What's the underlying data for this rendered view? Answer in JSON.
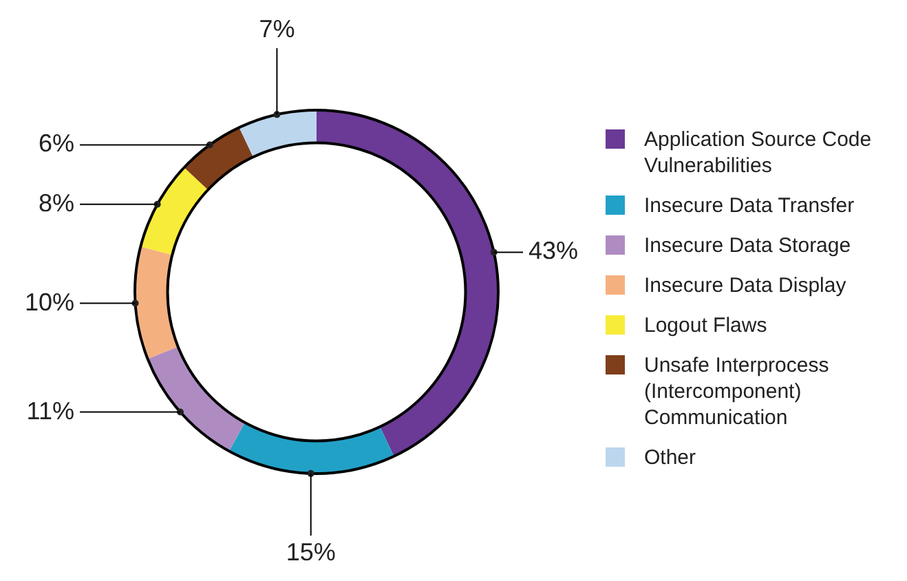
{
  "chart_data": {
    "type": "donut",
    "categories": [
      "Application Source Code Vulnerabilities",
      "Insecure Data Transfer",
      "Insecure Data Storage",
      "Insecure Data Display",
      "Logout Flaws",
      "Unsafe Interprocess (Intercomponent) Communication",
      "Other"
    ],
    "values": [
      43,
      15,
      11,
      10,
      8,
      6,
      7
    ],
    "colors": [
      "#6a3a96",
      "#22a1c7",
      "#ae8cc2",
      "#f5b080",
      "#f8ec3a",
      "#7f3f1b",
      "#bcd6ee"
    ],
    "value_labels": [
      "43%",
      "15%",
      "11%",
      "10%",
      "8%",
      "6%",
      "7%"
    ],
    "legend": "right"
  }
}
